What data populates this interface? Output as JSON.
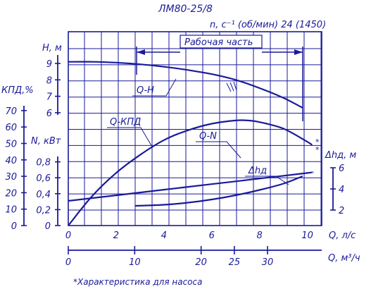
{
  "chart_data": {
    "type": "line",
    "title": "ЛМ80-25/8",
    "subtitle": "n, c⁻¹ (об/мин) 24 (1450)",
    "caption": "*Характеристика для насоса",
    "working_range": {
      "label": "Рабочая часть",
      "from_q": 2.8,
      "to_q": 9.8
    },
    "x_axis": {
      "label": "Q, л/с",
      "range": [
        0,
        10.6
      ],
      "ticks": [
        "0",
        "2",
        "4",
        "6",
        "8",
        "10"
      ]
    },
    "x2_axis": {
      "label": "Q, м³/ч",
      "ticks": [
        "0",
        "10",
        "20",
        "25",
        "30"
      ],
      "tick_values": [
        0,
        10,
        20,
        25,
        30
      ]
    },
    "axes": {
      "H": {
        "label": "H, м",
        "ticks": [
          "9",
          "8",
          "7",
          "6"
        ]
      },
      "eff": {
        "label": "КПД,%",
        "ticks": [
          "70",
          "60",
          "50",
          "40",
          "30",
          "20",
          "10",
          "0"
        ]
      },
      "N": {
        "label": "N, кВт",
        "ticks": [
          "0,8",
          "0,6",
          "0,4",
          "0,2",
          "0"
        ]
      },
      "dh": {
        "label": "Δhд, м",
        "ticks": [
          "6",
          "4",
          "2"
        ]
      }
    },
    "series": [
      {
        "name": "Q-H",
        "axis": "H",
        "x": [
          0,
          1,
          2,
          3,
          4,
          5,
          6,
          7,
          8,
          9,
          9.8
        ],
        "y": [
          9.1,
          9.1,
          9.05,
          8.95,
          8.8,
          8.6,
          8.35,
          8.0,
          7.5,
          6.9,
          6.3
        ]
      },
      {
        "name": "Q-КПД",
        "axis": "eff",
        "x": [
          0,
          1,
          2,
          3,
          4,
          5,
          6,
          7,
          7.5,
          8,
          9,
          10,
          10.2
        ],
        "y": [
          0,
          18,
          32,
          43,
          52,
          58,
          62,
          64,
          64,
          63,
          59,
          51,
          49
        ]
      },
      {
        "name": "Q-N",
        "axis": "N",
        "x": [
          0,
          2,
          4,
          6,
          8,
          10,
          10.2
        ],
        "y": [
          0.31,
          0.38,
          0.45,
          0.52,
          0.59,
          0.66,
          0.67
        ]
      },
      {
        "name": "Δhд",
        "axis": "dh",
        "x": [
          2.8,
          4,
          5,
          6,
          7,
          8,
          9,
          9.8
        ],
        "y": [
          2.4,
          2.5,
          2.7,
          3.0,
          3.4,
          3.9,
          4.5,
          5.2
        ]
      }
    ],
    "grid": true
  }
}
